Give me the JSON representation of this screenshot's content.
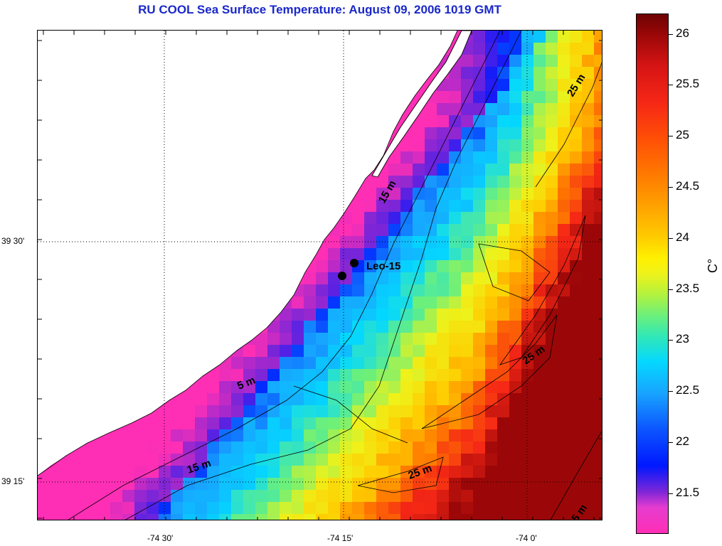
{
  "title": "RU COOL  Sea Surface Temperature:  August 09, 2006 1019 GMT",
  "map": {
    "latitude_labels": [
      "39 30'",
      "39 15'"
    ],
    "longitude_labels": [
      "-74 30'",
      "-74 15'",
      "-74 0'"
    ],
    "grid_style": "dotted",
    "station": {
      "label": "Leo-15",
      "marker_count": 2,
      "marker_color": "#000000"
    },
    "contour_labels": [
      "25 m",
      "15 m",
      "25 m",
      "5 m",
      "25 m",
      "15 m",
      "5 m"
    ],
    "land_color": "#ffffff",
    "contour_color": "#000000"
  },
  "colorbar": {
    "unit": "C°",
    "tick_labels": [
      "26",
      "25.5",
      "25",
      "24.5",
      "24",
      "23.5",
      "23",
      "22.5",
      "22",
      "21.5"
    ],
    "min": 21.1,
    "max": 26.2,
    "colors": [
      "#ff2fb5",
      "#7d26d7",
      "#0018ff",
      "#18a4ff",
      "#04d8ff",
      "#6cf07a",
      "#eef21a",
      "#ffcc00",
      "#ff7a00",
      "#f52716",
      "#9b0708"
    ]
  }
}
